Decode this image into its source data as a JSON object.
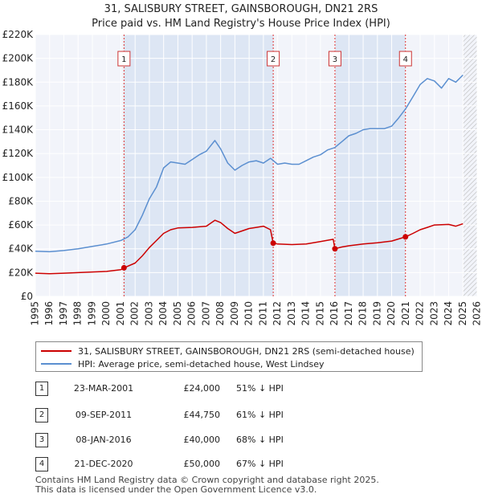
{
  "title": {
    "line1": "31, SALISBURY STREET, GAINSBOROUGH, DN21 2RS",
    "line2": "Price paid vs. HM Land Registry's House Price Index (HPI)"
  },
  "legend": {
    "property": "31, SALISBURY STREET, GAINSBOROUGH, DN21 2RS (semi-detached house)",
    "hpi": "HPI: Average price, semi-detached house, West Lindsey"
  },
  "transactions": [
    {
      "id": "1",
      "date": "23-MAR-2001",
      "price": "£24,000",
      "hpi": "51% ↓ HPI"
    },
    {
      "id": "2",
      "date": "09-SEP-2011",
      "price": "£44,750",
      "hpi": "61% ↓ HPI"
    },
    {
      "id": "3",
      "date": "08-JAN-2016",
      "price": "£40,000",
      "hpi": "68% ↓ HPI"
    },
    {
      "id": "4",
      "date": "21-DEC-2020",
      "price": "£50,000",
      "hpi": "67% ↓ HPI"
    }
  ],
  "footer": {
    "line1": "Contains HM Land Registry data © Crown copyright and database right 2025.",
    "line2": "This data is licensed under the Open Government Licence v3.0."
  },
  "colors": {
    "property": "#cc0000",
    "hpi": "#5b8fd0",
    "grid": "#dddddd",
    "plot_bg": "#f2f4fa",
    "band": "#dde6f4"
  },
  "chart_data": {
    "type": "line",
    "title": "Price paid vs. HM Land Registry's House Price Index (HPI)",
    "xlabel": "",
    "ylabel": "",
    "xlim": [
      1995,
      2026
    ],
    "ylim": [
      0,
      220000
    ],
    "x_ticks": [
      1995,
      1996,
      1997,
      1998,
      1999,
      2000,
      2001,
      2002,
      2003,
      2004,
      2005,
      2006,
      2007,
      2008,
      2009,
      2010,
      2011,
      2012,
      2013,
      2014,
      2015,
      2016,
      2017,
      2018,
      2019,
      2020,
      2021,
      2022,
      2023,
      2024,
      2025,
      2026
    ],
    "y_ticks": [
      0,
      20000,
      40000,
      60000,
      80000,
      100000,
      120000,
      140000,
      160000,
      180000,
      200000,
      220000
    ],
    "y_tick_labels": [
      "£0",
      "£20K",
      "£40K",
      "£60K",
      "£80K",
      "£100K",
      "£120K",
      "£140K",
      "£160K",
      "£180K",
      "£200K",
      "£220K"
    ],
    "future_from": 2025.0,
    "series": [
      {
        "name": "31, SALISBURY STREET, GAINSBOROUGH, DN21 2RS (semi-detached house)",
        "x": [
          1995.0,
          1996.0,
          1997.0,
          1998.0,
          1999.0,
          2000.0,
          2001.0,
          2001.22,
          2002.0,
          2002.5,
          2003.0,
          2003.5,
          2004.0,
          2004.5,
          2005.0,
          2006.0,
          2007.0,
          2007.6,
          2008.0,
          2008.5,
          2009.0,
          2009.5,
          2010.0,
          2010.5,
          2011.0,
          2011.5,
          2011.69,
          2012.0,
          2013.0,
          2014.0,
          2015.0,
          2015.9,
          2016.02,
          2016.5,
          2017.0,
          2018.0,
          2019.0,
          2020.0,
          2020.97,
          2021.5,
          2022.0,
          2022.5,
          2023.0,
          2024.0,
          2024.5,
          2025.0
        ],
        "values": [
          19500,
          19000,
          19500,
          20000,
          20500,
          21000,
          22500,
          24000,
          28000,
          34000,
          41000,
          47000,
          53000,
          56000,
          57500,
          58000,
          59000,
          64000,
          62000,
          57000,
          53000,
          55000,
          57000,
          58000,
          59000,
          56000,
          44750,
          44000,
          43500,
          44000,
          46000,
          48000,
          40000,
          41500,
          42500,
          44000,
          45000,
          46500,
          50000,
          53000,
          56000,
          58000,
          60000,
          60500,
          59000,
          61000
        ]
      },
      {
        "name": "HPI: Average price, semi-detached house, West Lindsey",
        "x": [
          1995.0,
          1996.0,
          1997.0,
          1998.0,
          1999.0,
          2000.0,
          2001.0,
          2001.5,
          2002.0,
          2002.5,
          2003.0,
          2003.5,
          2004.0,
          2004.5,
          2005.0,
          2005.5,
          2006.0,
          2006.5,
          2007.0,
          2007.6,
          2008.0,
          2008.5,
          2009.0,
          2009.5,
          2010.0,
          2010.5,
          2011.0,
          2011.5,
          2012.0,
          2012.5,
          2013.0,
          2013.5,
          2014.0,
          2014.5,
          2015.0,
          2015.5,
          2016.0,
          2016.5,
          2017.0,
          2017.5,
          2018.0,
          2018.5,
          2019.0,
          2019.5,
          2020.0,
          2020.5,
          2021.0,
          2021.5,
          2022.0,
          2022.5,
          2023.0,
          2023.5,
          2024.0,
          2024.5,
          2025.0
        ],
        "values": [
          38000,
          37500,
          38500,
          40000,
          42000,
          44000,
          47000,
          50000,
          56000,
          68000,
          82000,
          92000,
          108000,
          113000,
          112000,
          111000,
          115000,
          119000,
          122000,
          131000,
          124000,
          112000,
          106000,
          110000,
          113000,
          114000,
          112000,
          116000,
          111000,
          112000,
          111000,
          111000,
          114000,
          117000,
          119000,
          123000,
          125000,
          130000,
          135000,
          137000,
          140000,
          141000,
          141000,
          141000,
          143000,
          150000,
          158000,
          168000,
          178000,
          183000,
          181000,
          175000,
          183000,
          180000,
          186000
        ]
      }
    ],
    "transactions": [
      {
        "id": "1",
        "x": 2001.22,
        "y": 24000
      },
      {
        "id": "2",
        "x": 2011.69,
        "y": 44750
      },
      {
        "id": "3",
        "x": 2016.02,
        "y": 40000
      },
      {
        "id": "4",
        "x": 2020.97,
        "y": 50000
      }
    ]
  }
}
